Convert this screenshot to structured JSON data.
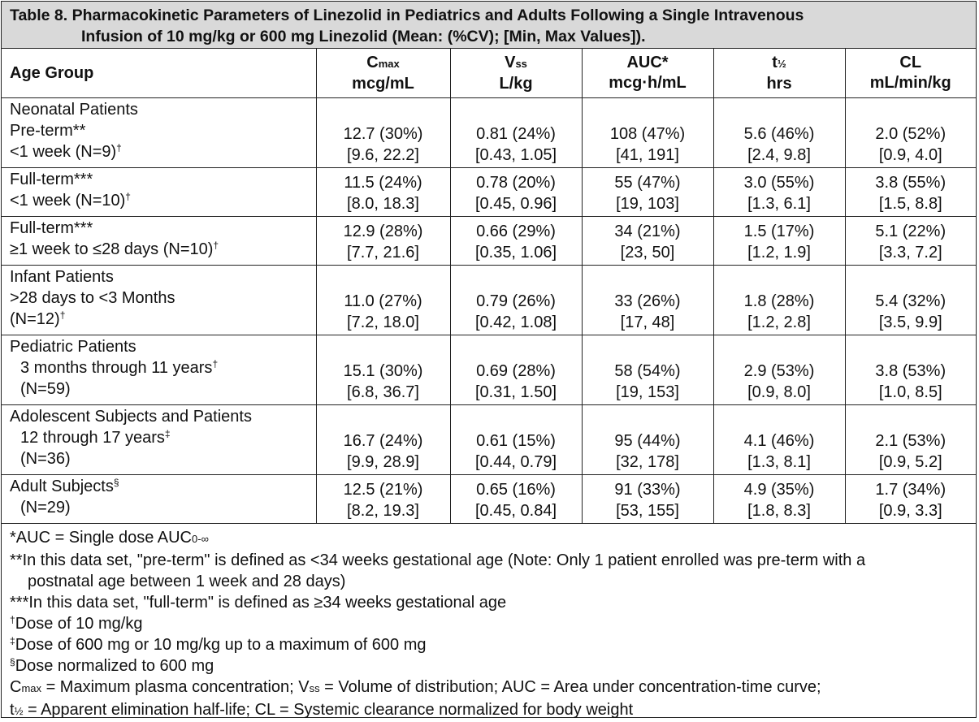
{
  "caption": {
    "line1": "Table 8. Pharmacokinetic Parameters of Linezolid in Pediatrics and Adults Following a Single Intravenous",
    "line2": "Infusion of 10 mg/kg or 600 mg Linezolid (Mean: (%CV); [Min, Max Values])."
  },
  "headers": {
    "age_group": "Age Group",
    "cmax_main": "C",
    "cmax_sub": "max",
    "cmax_unit": "mcg/mL",
    "vss_main": "V",
    "vss_sub": "ss",
    "vss_unit": "L/kg",
    "auc_main": "AUC*",
    "auc_unit": "mcg·h/mL",
    "thalf_main": "t",
    "thalf_sub": "½",
    "thalf_unit": "hrs",
    "cl_main": "CL",
    "cl_unit": "mL/min/kg"
  },
  "rows": [
    {
      "label_lines": [
        "Neonatal Patients",
        "Pre-term**",
        "<1 week (N=9)"
      ],
      "label_sup": "†",
      "means": [
        "12.7 (30%)",
        "0.81 (24%)",
        "108 (47%)",
        "5.6 (46%)",
        "2.0 (52%)"
      ],
      "ranges": [
        "[9.6, 22.2]",
        "[0.43, 1.05]",
        "[41, 191]",
        "[2.4, 9.8]",
        "[0.9, 4.0]"
      ]
    },
    {
      "label_lines": [
        "Full-term***",
        "<1 week (N=10)"
      ],
      "label_sup": "†",
      "means": [
        "11.5 (24%)",
        "0.78 (20%)",
        "55 (47%)",
        "3.0 (55%)",
        "3.8 (55%)"
      ],
      "ranges": [
        "[8.0, 18.3]",
        "[0.45, 0.96]",
        "[19, 103]",
        "[1.3, 6.1]",
        "[1.5, 8.8]"
      ]
    },
    {
      "label_lines": [
        "Full-term***",
        "≥1 week to ≤28 days (N=10)"
      ],
      "label_sup": "†",
      "means": [
        "12.9 (28%)",
        "0.66 (29%)",
        "34 (21%)",
        "1.5 (17%)",
        "5.1 (22%)"
      ],
      "ranges": [
        "[7.7, 21.6]",
        "[0.35, 1.06]",
        "[23, 50]",
        "[1.2, 1.9]",
        "[3.3, 7.2]"
      ]
    },
    {
      "label_lines": [
        "Infant Patients",
        ">28 days to <3 Months",
        "(N=12)"
      ],
      "label_sup": "†",
      "means": [
        "11.0 (27%)",
        "0.79 (26%)",
        "33 (26%)",
        "1.8 (28%)",
        "5.4 (32%)"
      ],
      "ranges": [
        "[7.2, 18.0]",
        "[0.42, 1.08]",
        "[17, 48]",
        "[1.2, 2.8]",
        "[3.5, 9.9]"
      ]
    },
    {
      "label_lines": [
        "Pediatric Patients",
        "3 months through 11 years",
        "(N=59)"
      ],
      "label_sup": "†",
      "means": [
        "15.1 (30%)",
        "0.69 (28%)",
        "58 (54%)",
        "2.9 (53%)",
        "3.8 (53%)"
      ],
      "ranges": [
        "[6.8, 36.7]",
        "[0.31, 1.50]",
        "[19, 153]",
        "[0.9, 8.0]",
        "[1.0, 8.5]"
      ]
    },
    {
      "label_lines": [
        "Adolescent Subjects and Patients",
        "12 through 17 years",
        "(N=36)"
      ],
      "label_sup": "‡",
      "means": [
        "16.7 (24%)",
        "0.61 (15%)",
        "95 (44%)",
        "4.1 (46%)",
        "2.1 (53%)"
      ],
      "ranges": [
        "[9.9, 28.9]",
        "[0.44, 0.79]",
        "[32, 178]",
        "[1.3, 8.1]",
        "[0.9, 5.2]"
      ]
    },
    {
      "label_lines": [
        "Adult Subjects",
        "(N=29)"
      ],
      "label_sup": "§",
      "means": [
        "12.5 (21%)",
        "0.65 (16%)",
        "91 (33%)",
        "4.9 (35%)",
        "1.7 (34%)"
      ],
      "ranges": [
        "[8.2, 19.3]",
        "[0.45, 0.84]",
        "[53, 155]",
        "[1.8, 8.3]",
        "[0.9, 3.3]"
      ]
    }
  ],
  "footnotes": {
    "auc": "*AUC = Single dose AUC",
    "auc_sub": "0-∞",
    "preterm_line1": "**In this data set, \"pre-term\" is defined as <34 weeks gestational age (Note: Only 1 patient enrolled was pre-term with a",
    "preterm_line2": "postnatal age between 1 week and 28 days)",
    "fullterm": "***In this data set, \"full-term\" is defined as ≥34 weeks gestational age",
    "dagger_mark": "†",
    "dagger_text": "Dose of 10 mg/kg",
    "ddagger_mark": "‡",
    "ddagger_text": "Dose of 600 mg or 10 mg/kg up to a maximum of 600 mg",
    "section_mark": "§",
    "section_text": "Dose normalized to 600 mg",
    "abbrev1_c": "C",
    "abbrev1_csub": "max",
    "abbrev1_a": " = Maximum plasma concentration; V",
    "abbrev1_vsub": "ss",
    "abbrev1_b": " = Volume of distribution; AUC = Area under concentration-time curve;",
    "abbrev2_t": "t",
    "abbrev2_tsub": "½",
    "abbrev2_text": " = Apparent elimination half-life; CL = Systemic clearance normalized for body weight"
  }
}
